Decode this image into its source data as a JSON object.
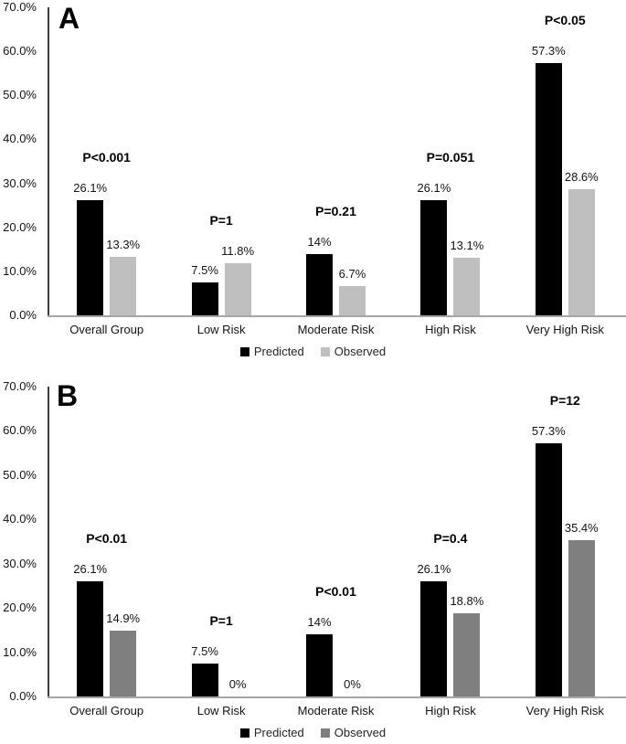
{
  "chart_data": [
    {
      "type": "bar",
      "panel_label": "A",
      "title": "",
      "xlabel": "",
      "ylabel": "",
      "ylim": [
        0,
        70
      ],
      "grid": false,
      "legend_position": "bottom-center",
      "y_ticks": [
        "0.0%",
        "10.0%",
        "20.0%",
        "30.0%",
        "40.0%",
        "50.0%",
        "60.0%",
        "70.0%"
      ],
      "categories": [
        "Overall Group",
        "Low Risk",
        "Moderate Risk",
        "High Risk",
        "Very High Risk"
      ],
      "series": [
        {
          "name": "Predicted",
          "color": "#000000",
          "values": [
            26.1,
            7.5,
            14,
            26.1,
            57.3
          ],
          "value_labels": [
            "26.1%",
            "7.5%",
            "14%",
            "26.1%",
            "57.3%"
          ]
        },
        {
          "name": "Observed",
          "color": "#bfbfbf",
          "values": [
            13.3,
            11.8,
            6.7,
            13.1,
            28.6
          ],
          "value_labels": [
            "13.3%",
            "11.8%",
            "6.7%",
            "13.1%",
            "28.6%"
          ]
        }
      ],
      "p_values": [
        "P<0.001",
        "P=1",
        "P=0.21",
        "P=0.051",
        "P<0.05"
      ]
    },
    {
      "type": "bar",
      "panel_label": "B",
      "title": "",
      "xlabel": "",
      "ylabel": "",
      "ylim": [
        0,
        70
      ],
      "grid": false,
      "legend_position": "bottom-center",
      "y_ticks": [
        "0.0%",
        "10.0%",
        "20.0%",
        "30.0%",
        "40.0%",
        "50.0%",
        "60.0%",
        "70.0%"
      ],
      "categories": [
        "Overall Group",
        "Low Risk",
        "Moderate Risk",
        "High Risk",
        "Very High Risk"
      ],
      "series": [
        {
          "name": "Predicted",
          "color": "#000000",
          "values": [
            26.1,
            7.5,
            14,
            26.1,
            57.3
          ],
          "value_labels": [
            "26.1%",
            "7.5%",
            "14%",
            "26.1%",
            "57.3%"
          ]
        },
        {
          "name": "Observed",
          "color": "#7f7f7f",
          "values": [
            14.9,
            0,
            0,
            18.8,
            35.4
          ],
          "value_labels": [
            "14.9%",
            "0%",
            "0%",
            "18.8%",
            "35.4%"
          ]
        }
      ],
      "p_values": [
        "P<0.01",
        "P=1",
        "P<0.01",
        "P=0.4",
        "P=12"
      ]
    }
  ]
}
